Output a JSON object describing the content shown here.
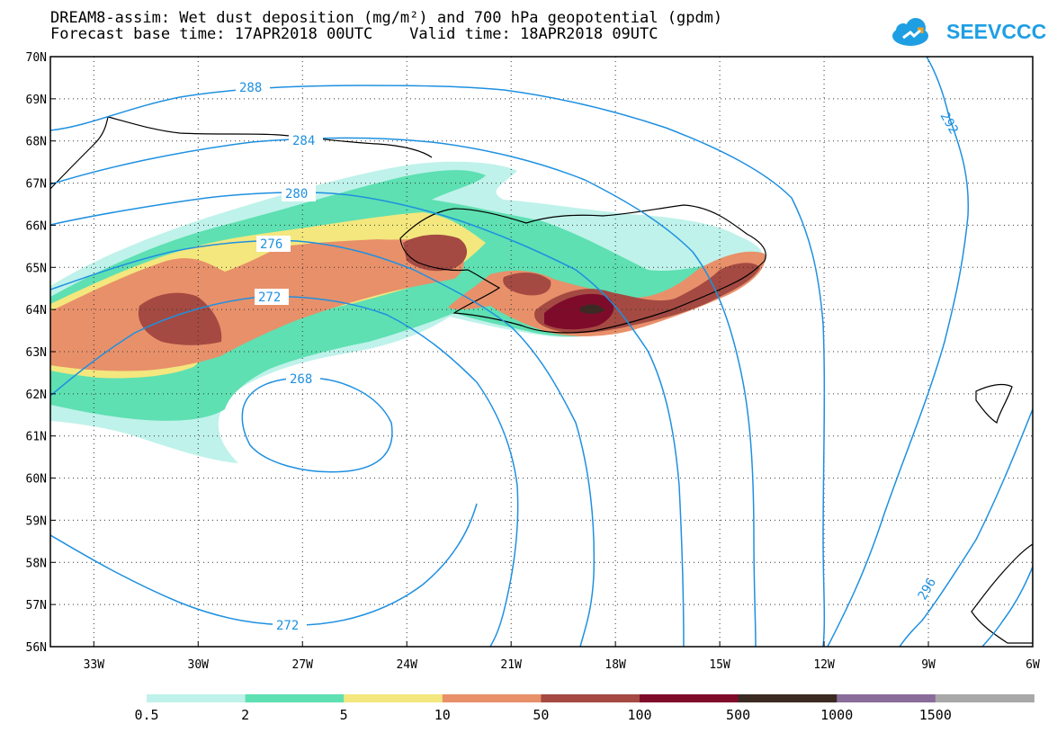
{
  "header": {
    "title_line1": "DREAM8-assim: Wet dust deposition (mg/m²) and 700 hPa geopotential (gpdm)",
    "title_line2": "Forecast base time: 17APR2018 00UTC    Valid time: 18APR2018 09UTC"
  },
  "logo": {
    "text": "SEEVCCC",
    "icon": "cloud-icon",
    "color": "#1f9fe3"
  },
  "map": {
    "lat_labels": [
      "70N",
      "69N",
      "68N",
      "67N",
      "66N",
      "65N",
      "64N",
      "63N",
      "62N",
      "61N",
      "60N",
      "59N",
      "58N",
      "57N",
      "56N"
    ],
    "lon_labels": [
      "33W",
      "30W",
      "27W",
      "24W",
      "21W",
      "18W",
      "15W",
      "12W",
      "9W",
      "6W"
    ],
    "lat_range": [
      56,
      70
    ],
    "lon_range": [
      -34.25,
      -6
    ],
    "grid": "dotted",
    "contour_color": "#1e90e0",
    "contour_labels": [
      "288",
      "284",
      "280",
      "276",
      "272",
      "268",
      "272",
      "292",
      "296"
    ]
  },
  "legend": {
    "labels": [
      "0.5",
      "2",
      "5",
      "10",
      "50",
      "100",
      "500",
      "1000",
      "1500"
    ],
    "colors": [
      "#bff2ea",
      "#5ee0b2",
      "#f3e77e",
      "#e8906a",
      "#a44a42",
      "#7f0b2b",
      "#3a2a22",
      "#8a6c9a",
      "#a8a8a8"
    ]
  }
}
